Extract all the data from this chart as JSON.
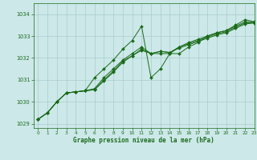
{
  "xlabel": "Graphe pression niveau de la mer (hPa)",
  "ylim": [
    1028.8,
    1034.5
  ],
  "xlim": [
    -0.5,
    23
  ],
  "yticks": [
    1029,
    1030,
    1031,
    1032,
    1033,
    1034
  ],
  "xticks": [
    0,
    1,
    2,
    3,
    4,
    5,
    6,
    7,
    8,
    9,
    10,
    11,
    12,
    13,
    14,
    15,
    16,
    17,
    18,
    19,
    20,
    21,
    22,
    23
  ],
  "bg_color": "#cce8e8",
  "grid_color": "#aacccc",
  "line_color": "#1a6b1a",
  "series": [
    [
      1029.2,
      1029.5,
      1030.0,
      1030.4,
      1030.45,
      1030.5,
      1031.1,
      1031.5,
      1031.9,
      1032.4,
      1032.8,
      1033.45,
      1031.1,
      1031.5,
      1032.2,
      1032.2,
      1032.5,
      1032.7,
      1033.0,
      1033.15,
      1033.25,
      1033.5,
      1033.75,
      1033.65
    ],
    [
      1029.2,
      1029.5,
      1030.0,
      1030.4,
      1030.45,
      1030.5,
      1030.6,
      1031.1,
      1031.5,
      1031.9,
      1032.2,
      1032.5,
      1032.2,
      1032.2,
      1032.2,
      1032.5,
      1032.7,
      1032.85,
      1033.0,
      1033.15,
      1033.25,
      1033.45,
      1033.65,
      1033.65
    ],
    [
      1029.2,
      1029.5,
      1030.0,
      1030.4,
      1030.45,
      1030.5,
      1030.55,
      1031.0,
      1031.4,
      1031.85,
      1032.1,
      1032.4,
      1032.2,
      1032.3,
      1032.25,
      1032.5,
      1032.65,
      1032.8,
      1032.95,
      1033.1,
      1033.2,
      1033.4,
      1033.6,
      1033.6
    ],
    [
      1029.2,
      1029.5,
      1030.0,
      1030.4,
      1030.45,
      1030.5,
      1030.55,
      1030.95,
      1031.35,
      1031.8,
      1032.1,
      1032.35,
      1032.2,
      1032.3,
      1032.25,
      1032.45,
      1032.6,
      1032.75,
      1032.9,
      1033.05,
      1033.15,
      1033.35,
      1033.55,
      1033.6
    ]
  ]
}
